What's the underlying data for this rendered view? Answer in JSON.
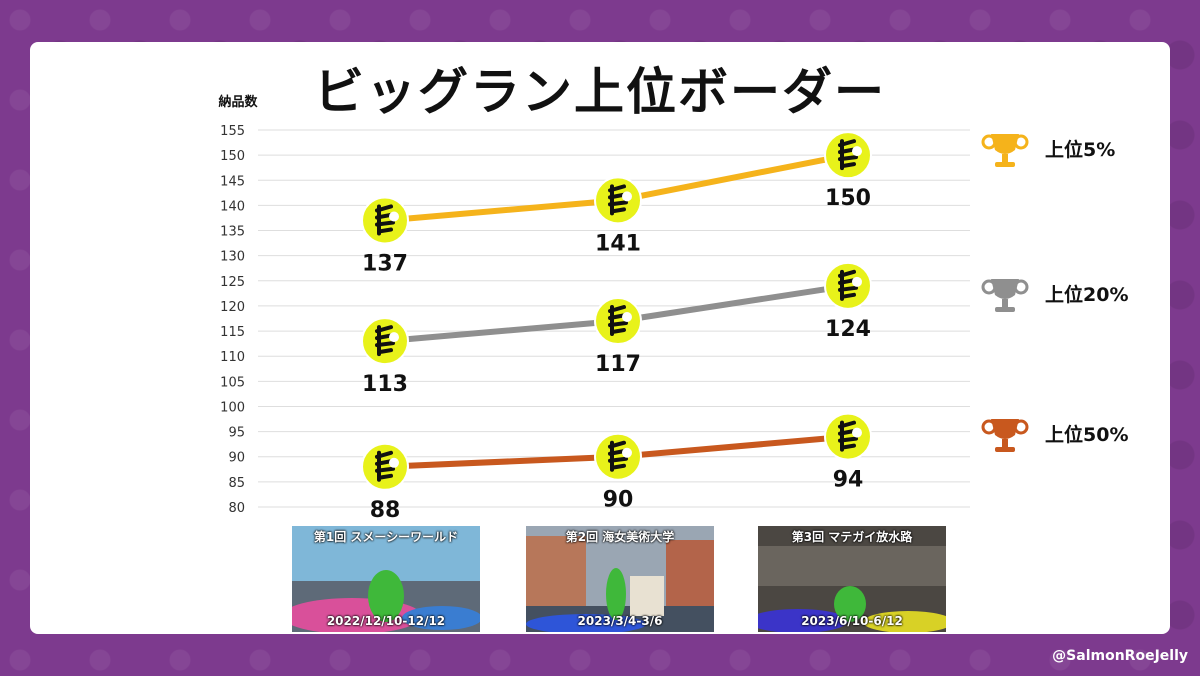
{
  "title": "ビッグラン上位ボーダー",
  "credit": "@SalmonRoeJelly",
  "colors": {
    "background": "#7d3a8e",
    "gold": "#f5b31b",
    "silver": "#8f8f8f",
    "bronze": "#c8581e",
    "marker": "#e8f21a"
  },
  "stages": [
    {
      "name": "第1回 スメーシーワールド",
      "date": "2022/12/10-12/12"
    },
    {
      "name": "第2回 海女美術大学",
      "date": "2023/3/4-3/6"
    },
    {
      "name": "第3回 マテガイ放水路",
      "date": "2023/6/10-6/12"
    }
  ],
  "chart_data": {
    "type": "line",
    "title": "ビッグラン上位ボーダー",
    "ylabel": "納品数",
    "xlabel": "",
    "ylim": [
      80,
      155
    ],
    "yticks": [
      155,
      150,
      145,
      140,
      135,
      130,
      125,
      120,
      115,
      110,
      105,
      100,
      95,
      90,
      85,
      80
    ],
    "categories": [
      "第1回 スメーシーワールド",
      "第2回 海女美術大学",
      "第3回 マテガイ放水路"
    ],
    "grid": true,
    "legend_placement": "right",
    "series": [
      {
        "name": "上位5%",
        "values": [
          137,
          141,
          150
        ],
        "color": "#f5b31b",
        "trophy": "gold-trophy-icon"
      },
      {
        "name": "上位20%",
        "values": [
          113,
          117,
          124
        ],
        "color": "#8f8f8f",
        "trophy": "silver-trophy-icon"
      },
      {
        "name": "上位50%",
        "values": [
          88,
          90,
          94
        ],
        "color": "#c8581e",
        "trophy": "bronze-trophy-icon"
      }
    ]
  }
}
